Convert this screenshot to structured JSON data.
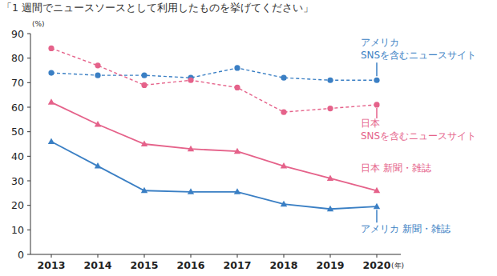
{
  "chart_data": {
    "type": "line",
    "title": "「1 週間でニュースソースとして利用したものを挙げてください」",
    "y_label": "(%)",
    "x_label": "(年)",
    "categories": [
      "2013",
      "2014",
      "2015",
      "2016",
      "2017",
      "2018",
      "2019",
      "2020"
    ],
    "ylim": [
      0,
      90
    ],
    "yticks": [
      0,
      10,
      20,
      30,
      40,
      50,
      60,
      70,
      80,
      90
    ],
    "grid": false,
    "series": [
      {
        "name": "アメリカ\nSNSを含むニュースサイト",
        "color": "#3a7fc4",
        "marker": "circle",
        "line_style": "dashed",
        "values": [
          74,
          73,
          73,
          72,
          76,
          72,
          71,
          71
        ]
      },
      {
        "name": "日本\nSNSを含むニュースサイト",
        "color": "#e5628a",
        "marker": "circle",
        "line_style": "dashed",
        "values": [
          84,
          77,
          69,
          71,
          68,
          58,
          59.5,
          61
        ]
      },
      {
        "name": "日本 新聞・雑誌",
        "color": "#e5628a",
        "marker": "triangle",
        "line_style": "solid",
        "values": [
          62,
          53,
          45,
          43,
          42,
          36,
          31,
          26
        ]
      },
      {
        "name": "アメリカ 新聞・雑誌",
        "color": "#3a7fc4",
        "marker": "triangle",
        "line_style": "solid",
        "values": [
          46,
          36,
          26,
          25.5,
          25.5,
          20.5,
          18.5,
          19.5
        ]
      }
    ]
  }
}
